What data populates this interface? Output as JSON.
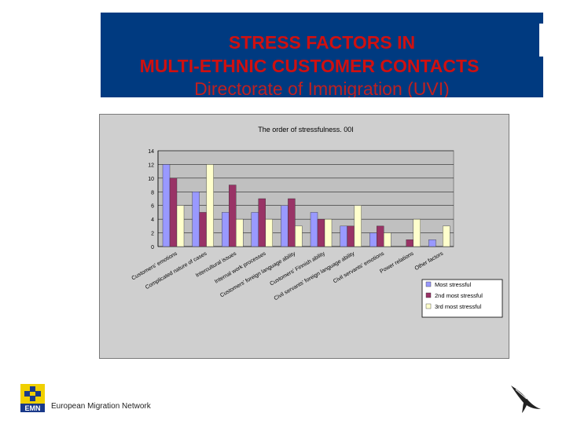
{
  "slide": {
    "title_line1": "STRESS FACTORS IN",
    "title_line2": "MULTI-ETHNIC CUSTOMER CONTACTS",
    "title_line3": "Directorate of Immigration (UVI)",
    "footer": "European Migration Network",
    "logo_text": "EMN"
  },
  "colors": {
    "title_bg": "#003a80",
    "title_text": "#d01010",
    "plot_bg": "#c0c0c0",
    "series": [
      "#9999ff",
      "#993366",
      "#ffffcc"
    ]
  },
  "chart_data": {
    "type": "bar",
    "title": "The order of stressfulness. 00I",
    "categories": [
      "Customers' emotions",
      "Complicated nature of cases",
      "Intercultural issues",
      "Internal work processes",
      "Customers' foreign language ability",
      "Customers' Finnish ability",
      "Civil servants' foreign language ability",
      "Civil servants' emotions",
      "Power relations",
      "Other factors"
    ],
    "series": [
      {
        "name": "Most stressful",
        "values": [
          12,
          8,
          5,
          5,
          6,
          5,
          3,
          2,
          0,
          1
        ]
      },
      {
        "name": "2nd most stressful",
        "values": [
          10,
          5,
          9,
          7,
          7,
          4,
          3,
          3,
          1,
          0
        ]
      },
      {
        "name": "3rd most stressful",
        "values": [
          6,
          12,
          4,
          4,
          3,
          4,
          6,
          2,
          4,
          3
        ]
      }
    ],
    "ylim": [
      0,
      14
    ],
    "yticks": [
      0,
      2,
      4,
      6,
      8,
      10,
      12,
      14
    ],
    "grid": true,
    "legend": "bottom-right",
    "xlabel": "",
    "ylabel": ""
  }
}
